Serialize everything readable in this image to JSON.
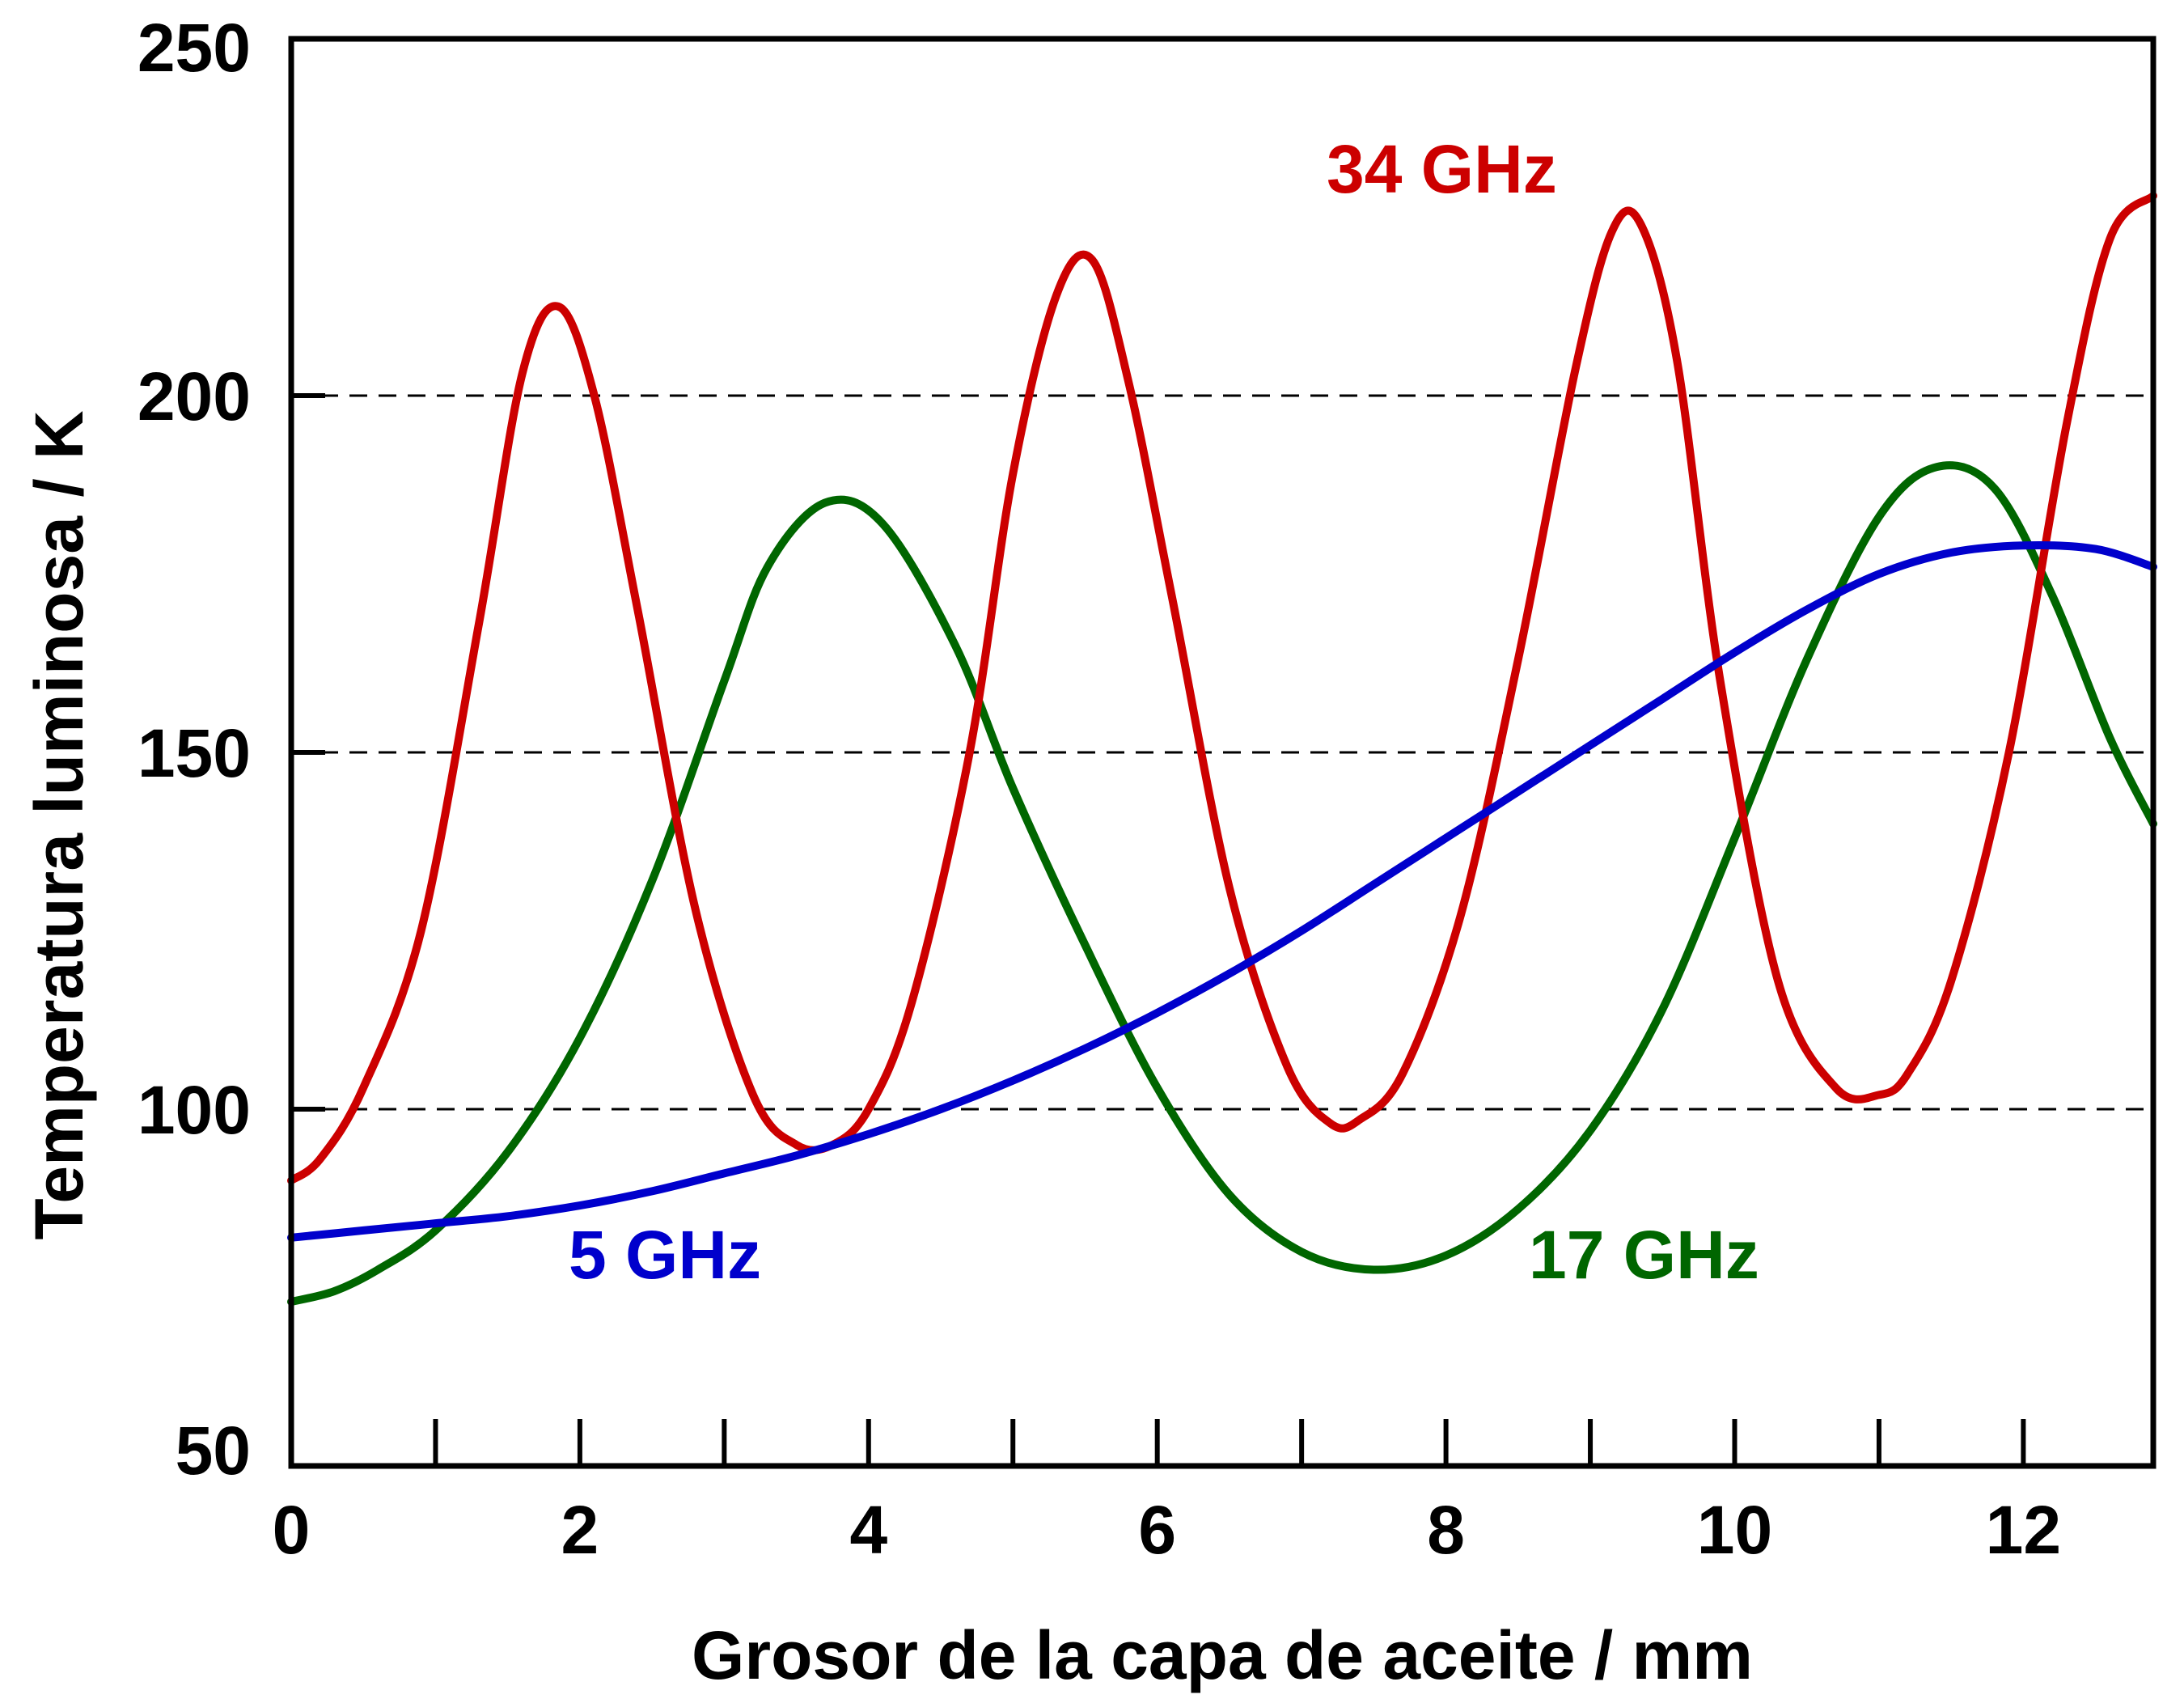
{
  "chart_data": {
    "type": "line",
    "title": "",
    "xlabel": "Grosor de la capa de aceite / mm",
    "ylabel": "Temperatura luminosa / K",
    "xlim": [
      0,
      12.9
    ],
    "ylim": [
      50,
      250
    ],
    "x_ticks": [
      0,
      2,
      4,
      6,
      8,
      10,
      12
    ],
    "x_minor_ticks": [
      1,
      3,
      5,
      7,
      9,
      11
    ],
    "y_ticks": [
      50,
      100,
      150,
      200,
      250
    ],
    "gridlines_y": [
      100,
      150,
      200
    ],
    "grid": "dashed horizontal at 100, 150, 200",
    "legend": "inline labels",
    "series": [
      {
        "name": "5 GHz",
        "color": "#0000cc",
        "x": [
          0,
          0.5,
          1,
          1.5,
          2,
          2.5,
          3,
          3.5,
          4,
          4.5,
          5,
          5.5,
          6,
          6.5,
          7,
          7.5,
          8,
          8.5,
          9,
          9.5,
          10,
          10.5,
          11,
          11.5,
          12,
          12.5,
          12.9
        ],
        "y": [
          82,
          83,
          84,
          85,
          86.5,
          88.5,
          91,
          93.5,
          96.5,
          100,
          104,
          108.5,
          113.5,
          119,
          125,
          131.5,
          138,
          144.5,
          151,
          157.5,
          164,
          170,
          175,
          178,
          179,
          178.5,
          176
        ]
      },
      {
        "name": "17 GHz",
        "color": "#006600",
        "x": [
          0,
          0.3,
          0.6,
          1,
          1.5,
          2,
          2.5,
          3,
          3.3,
          3.7,
          4.1,
          4.6,
          5,
          5.5,
          6,
          6.5,
          7,
          7.5,
          8,
          8.5,
          9,
          9.5,
          10,
          10.5,
          11,
          11.4,
          11.8,
          12.2,
          12.6,
          12.9
        ],
        "y": [
          73,
          74.5,
          77.5,
          83,
          94,
          110,
          132,
          160,
          176,
          185,
          182,
          165,
          145,
          123,
          103,
          88,
          80,
          77.5,
          79.5,
          86,
          97,
          114,
          138,
          163,
          183,
          190,
          187,
          172,
          152,
          140
        ]
      },
      {
        "name": "34 GHz",
        "color": "#cc0000",
        "x": [
          0,
          0.2,
          0.5,
          0.9,
          1.3,
          1.6,
          1.85,
          2.1,
          2.4,
          2.8,
          3.2,
          3.5,
          3.75,
          4.0,
          4.3,
          4.7,
          5.0,
          5.3,
          5.55,
          5.8,
          6.1,
          6.5,
          6.9,
          7.2,
          7.4,
          7.7,
          8.1,
          8.5,
          8.9,
          9.15,
          9.35,
          9.6,
          9.9,
          10.3,
          10.7,
          11.0,
          11.2,
          11.5,
          11.9,
          12.3,
          12.6,
          12.9
        ],
        "y": [
          90,
          93,
          103,
          125,
          168,
          203,
          212.5,
          200,
          170,
          128,
          102,
          95,
          95,
          100,
          115,
          150,
          189,
          214,
          219,
          202,
          172,
          131,
          106,
          98,
          98.5,
          105,
          127,
          163,
          204,
          223,
          224,
          205,
          160,
          118,
          103,
          102,
          105,
          118,
          150,
          196,
          222,
          228
        ]
      }
    ],
    "annotations": [
      {
        "text": "34 GHz",
        "color": "#cc0000"
      },
      {
        "text": "5 GHz",
        "color": "#0000cc"
      },
      {
        "text": "17 GHz",
        "color": "#006600"
      }
    ]
  }
}
